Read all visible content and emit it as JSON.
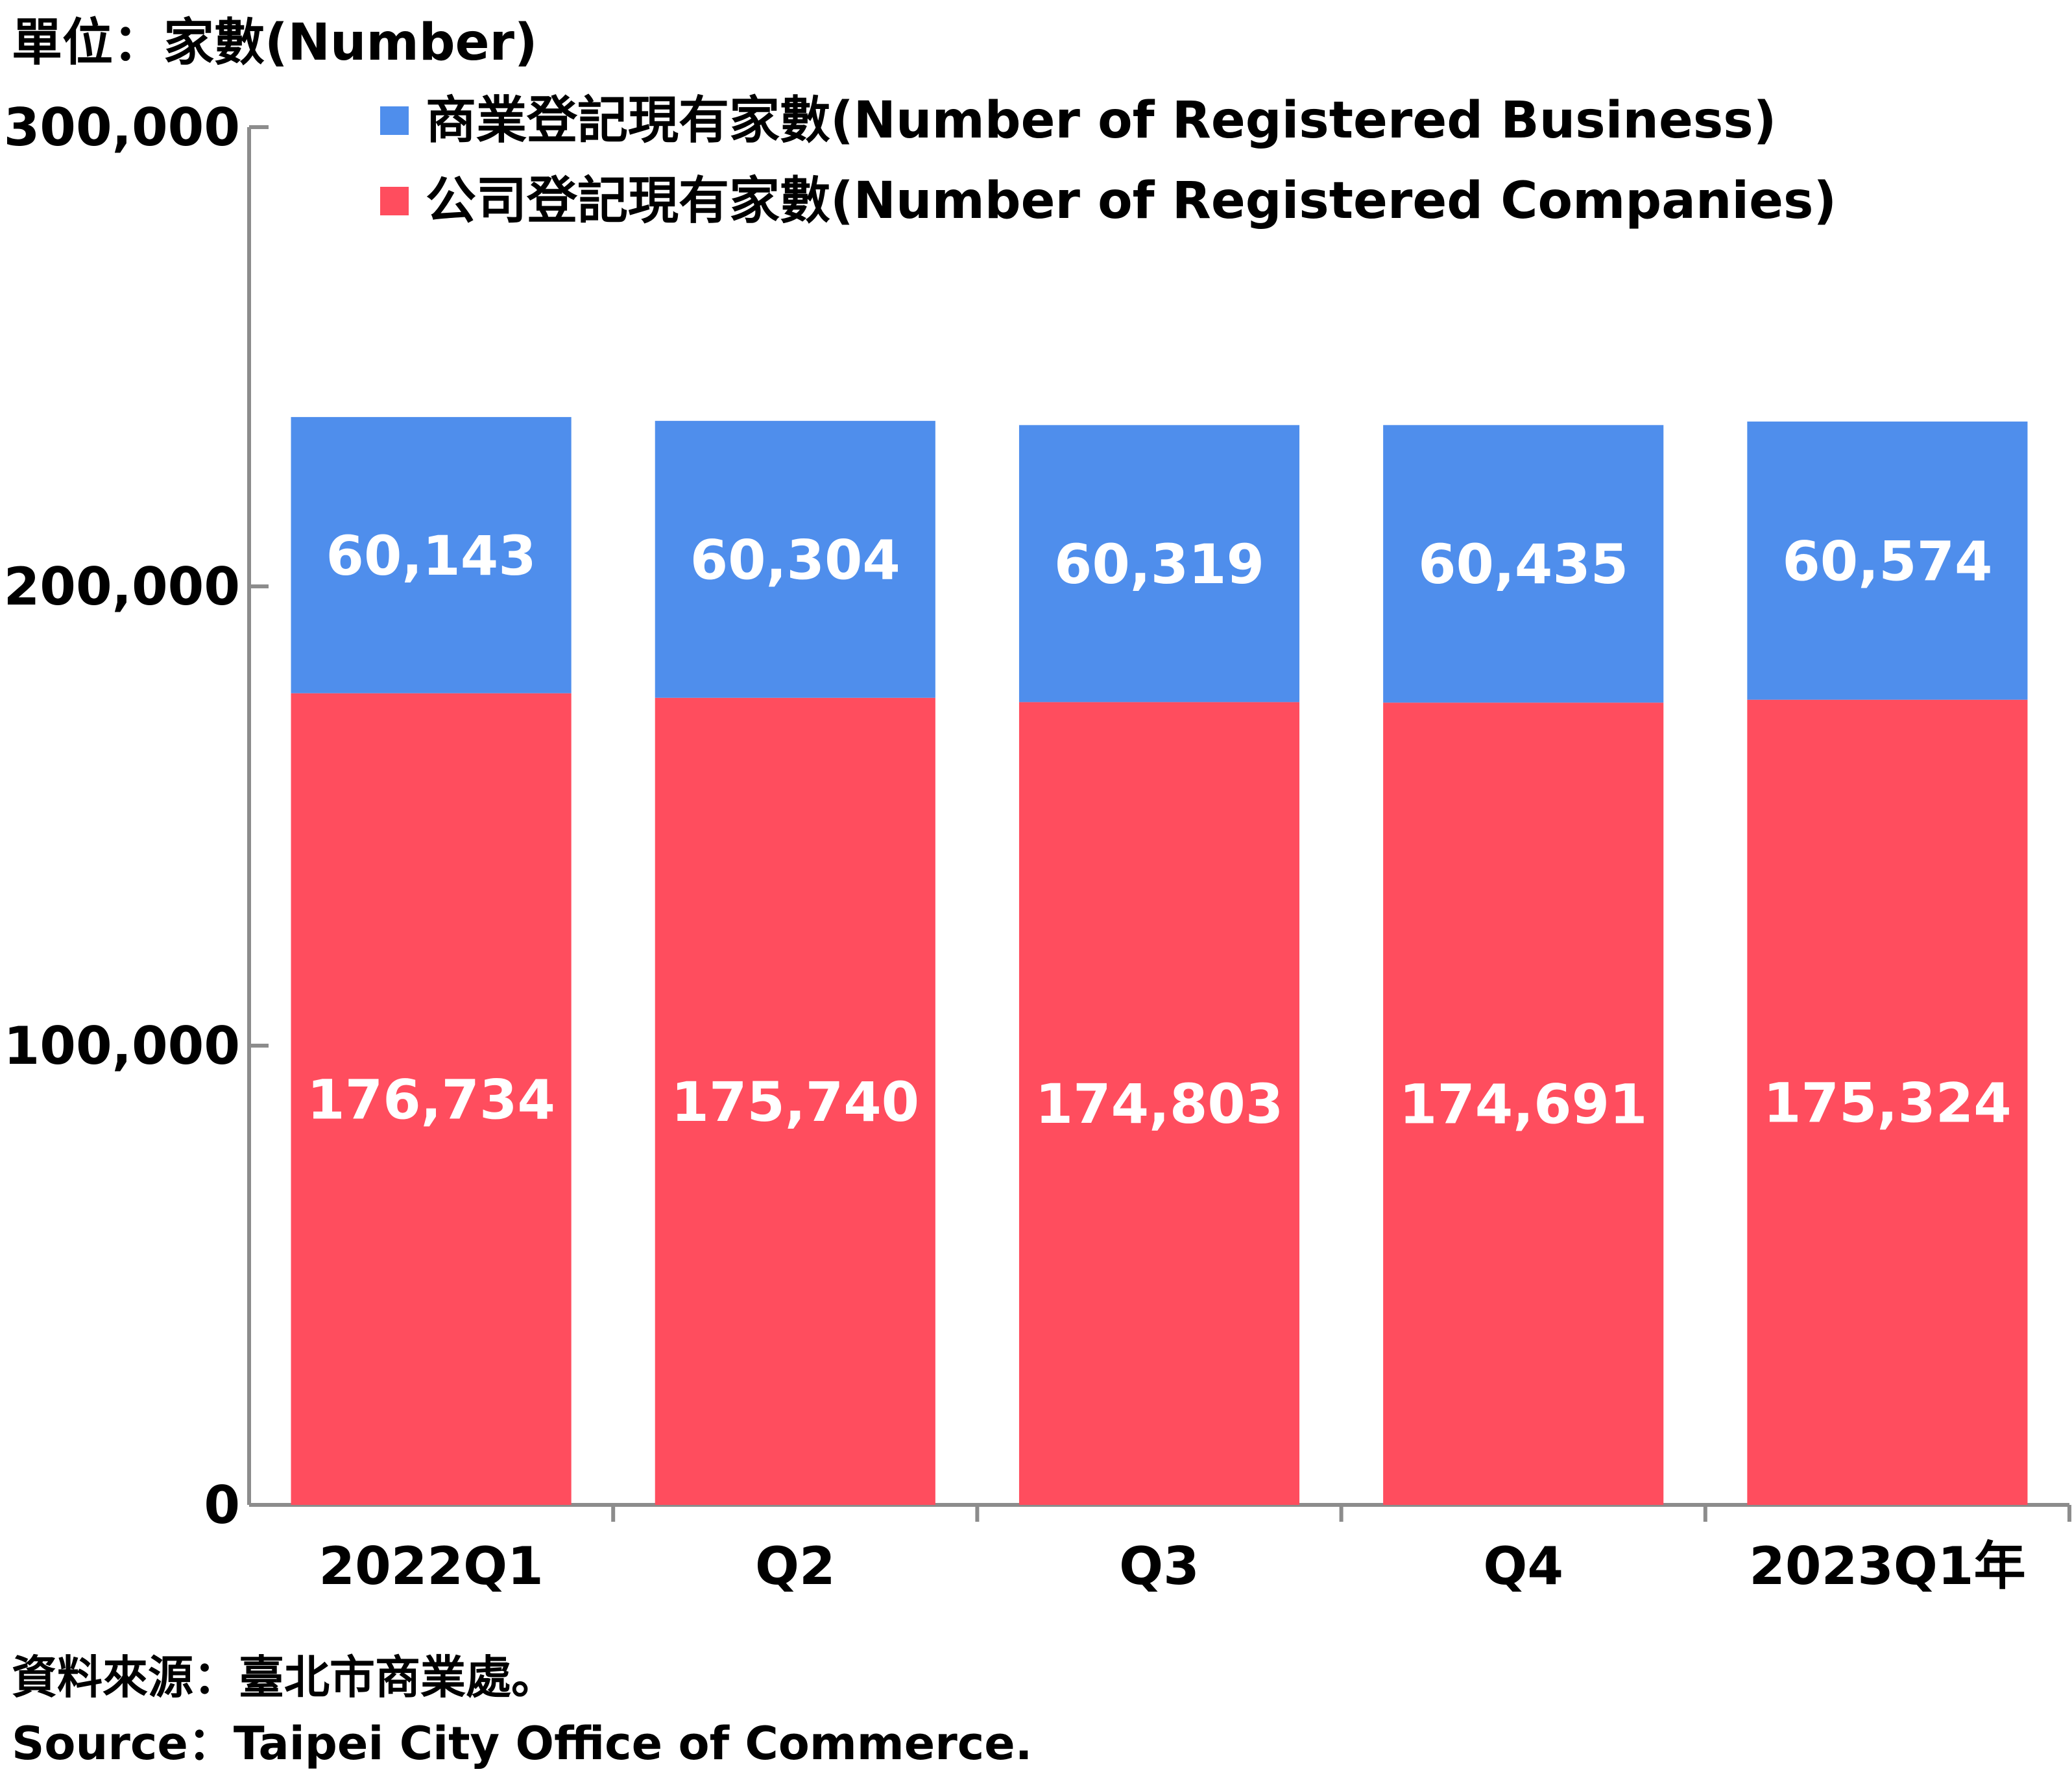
{
  "unit_label": "單位：家數(Number)",
  "source_zh": "資料來源：臺北市商業處。",
  "source_en": "Source：Taipei City Office of Commerce.",
  "chart_data": {
    "type": "bar",
    "stacked": true,
    "categories": [
      "2022Q1",
      "Q2",
      "Q3",
      "Q4",
      "2023Q1年"
    ],
    "series": [
      {
        "name": "公司登記現有家數(Number of Registered Companies)",
        "color": "#ff4d5e",
        "values": [
          176734,
          175740,
          174803,
          174691,
          175324
        ],
        "labels": [
          "176,734",
          "175,740",
          "174,803",
          "174,691",
          "175,324"
        ]
      },
      {
        "name": "商業登記現有家數(Number of Registered Business)",
        "color": "#4f8eec",
        "values": [
          60143,
          60304,
          60319,
          60435,
          60574
        ],
        "labels": [
          "60,143",
          "60,304",
          "60,319",
          "60,435",
          "60,574"
        ]
      }
    ],
    "ylim": [
      0,
      300000
    ],
    "yticks": [
      0,
      100000,
      200000,
      300000
    ],
    "ytick_labels": [
      "0",
      "100,000",
      "200,000",
      "300,000"
    ],
    "legend_position": "top",
    "grid": false
  }
}
